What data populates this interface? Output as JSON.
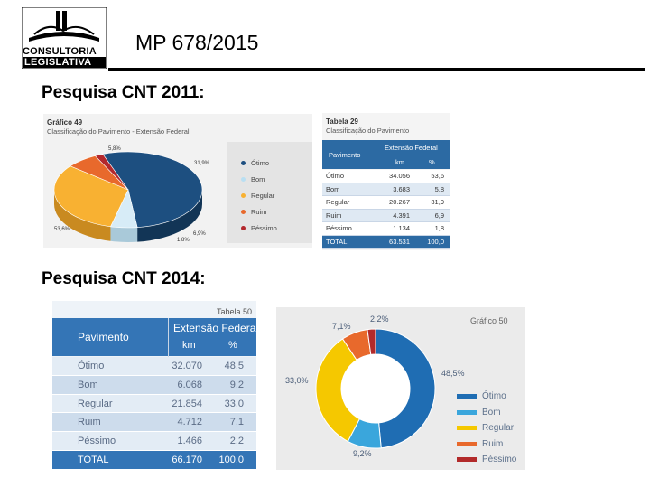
{
  "header": {
    "logo_line1": "CONSULTORIA",
    "logo_line2": "LEGISLATIVA",
    "title": "MP 678/2015"
  },
  "survey_2011": {
    "label": "Pesquisa CNT 2011:",
    "chart": {
      "title": "Gráfico 49",
      "subtitle": "Classificação do Pavimento - Extensão Federal",
      "labels": {
        "otimo": "53,6%",
        "bom": "5,8%",
        "regular": "31,9%",
        "ruim": "6,9%",
        "pessimo": "1,8%"
      }
    },
    "table": {
      "title": "Tabela 29",
      "subtitle": "Classificação do Pavimento",
      "col_group": "Extensão Federal",
      "col_rowhead": "Pavimento",
      "col_km": "km",
      "col_pct": "%",
      "rows": [
        {
          "label": "Ótimo",
          "km": "34.056",
          "pct": "53,6"
        },
        {
          "label": "Bom",
          "km": "3.683",
          "pct": "5,8"
        },
        {
          "label": "Regular",
          "km": "20.267",
          "pct": "31,9"
        },
        {
          "label": "Ruim",
          "km": "4.391",
          "pct": "6,9"
        },
        {
          "label": "Péssimo",
          "km": "1.134",
          "pct": "1,8"
        },
        {
          "label": "TOTAL",
          "km": "63.531",
          "pct": "100,0"
        }
      ]
    }
  },
  "survey_2014": {
    "label": "Pesquisa CNT 2014:",
    "table": {
      "title": "Tabela 50",
      "col_group": "Extensão Federal",
      "col_rowhead": "Pavimento",
      "col_km": "km",
      "col_pct": "%",
      "rows": [
        {
          "label": "Ótimo",
          "km": "32.070",
          "pct": "48,5"
        },
        {
          "label": "Bom",
          "km": "6.068",
          "pct": "9,2"
        },
        {
          "label": "Regular",
          "km": "21.854",
          "pct": "33,0"
        },
        {
          "label": "Ruim",
          "km": "4.712",
          "pct": "7,1"
        },
        {
          "label": "Péssimo",
          "km": "1.466",
          "pct": "2,2"
        },
        {
          "label": "TOTAL",
          "km": "66.170",
          "pct": "100,0"
        }
      ]
    },
    "chart": {
      "title": "Gráfico 50",
      "labels": {
        "otimo": "48,5%",
        "bom": "9,2%",
        "regular": "33,0%",
        "ruim": "7,1%",
        "pessimo": "2,2%"
      }
    }
  },
  "legend": [
    "Ótimo",
    "Bom",
    "Regular",
    "Ruim",
    "Péssimo"
  ],
  "colors": {
    "otimo": "#1d4f80",
    "bom": "#d7ecf7",
    "regular": "#f8b132",
    "ruim": "#e8692c",
    "pessimo": "#b3282d",
    "otimo14": "#1f6db3",
    "bom14": "#3aa6dc",
    "regular14": "#f5c800",
    "ruim14": "#e8692c",
    "pessimo14": "#b22a2a"
  },
  "chart_data": [
    {
      "type": "pie",
      "title": "Gráfico 49 - Classificação do Pavimento - Extensão Federal",
      "categories": [
        "Ótimo",
        "Bom",
        "Regular",
        "Ruim",
        "Péssimo"
      ],
      "values": [
        53.6,
        5.8,
        31.9,
        6.9,
        1.8
      ]
    },
    {
      "type": "pie",
      "title": "Gráfico 50",
      "categories": [
        "Ótimo",
        "Bom",
        "Regular",
        "Ruim",
        "Péssimo"
      ],
      "values": [
        48.5,
        9.2,
        33.0,
        7.1,
        2.2
      ]
    }
  ]
}
